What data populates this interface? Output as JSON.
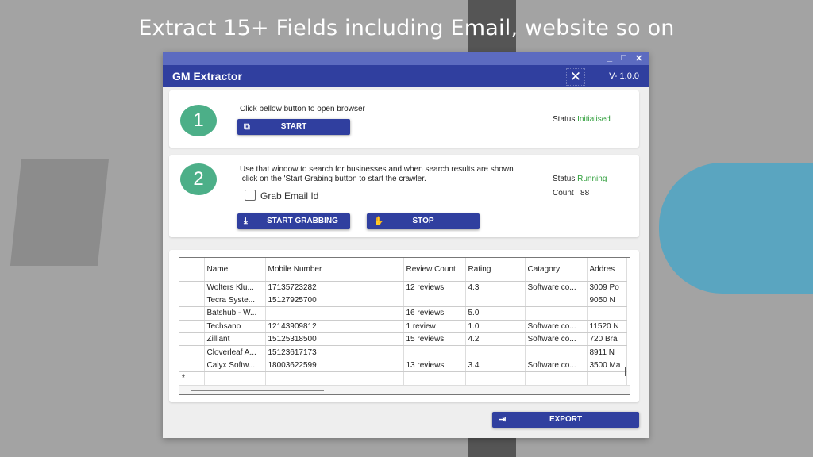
{
  "headline": "Extract 15+ Fields including Email, website so on",
  "window": {
    "controls": {
      "minimize": "_",
      "maximize": "□",
      "close": "✕"
    },
    "title": "GM Extractor",
    "version": "V- 1.0.0",
    "tools_icon": "✕"
  },
  "step1": {
    "number": "1",
    "instruction": "Click bellow button to open browser",
    "start_label": "START",
    "status_label": "Status",
    "status_value": "Initialised"
  },
  "step2": {
    "number": "2",
    "instruction_line1": "Use that window to search for businesses and when search results are shown",
    "instruction_line2": " click on the 'Start Grabing button to start the crawler.",
    "checkbox_label": "Grab Email Id",
    "checkbox_checked": false,
    "start_grabbing_label": "START GRABBING",
    "stop_label": "STOP",
    "status_label": "Status",
    "status_value": "Running",
    "count_label": "Count",
    "count_value": "88"
  },
  "table": {
    "columns": [
      "Name",
      "Mobile Number",
      "Review Count",
      "Rating",
      "Catagory",
      "Addres"
    ],
    "rows": [
      [
        "Wolters Klu...",
        "17135723282",
        "12 reviews",
        "4.3",
        "Software co...",
        "3009 Po"
      ],
      [
        "Tecra Syste...",
        "15127925700",
        "",
        "",
        "",
        "9050 N"
      ],
      [
        "Batshub - W...",
        "",
        "16 reviews",
        "5.0",
        "",
        ""
      ],
      [
        "Techsano",
        "12143909812",
        "1 review",
        "1.0",
        "Software co...",
        "11520 N"
      ],
      [
        "Zilliant",
        "15125318500",
        "15 reviews",
        "4.2",
        "Software co...",
        "720 Bra"
      ],
      [
        "Cloverleaf A...",
        "15123617173",
        "",
        "",
        "",
        "8911 N"
      ],
      [
        "Calyx Softw...",
        "18003622599",
        "13 reviews",
        "3.4",
        "Software co...",
        "3500 Ma"
      ]
    ],
    "new_row_marker": "*"
  },
  "export_label": "EXPORT",
  "colors": {
    "primary": "#303f9f",
    "titlebar": "#5c6bc0",
    "step_circle": "#4caf88",
    "status_green": "#2e9e3a"
  }
}
